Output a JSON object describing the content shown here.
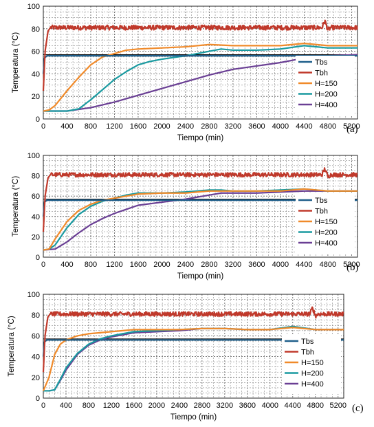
{
  "chart_data": [
    {
      "type": "line",
      "panel_label": "(a)",
      "xlabel": "Tiempo (min)",
      "ylabel": "Temperatura (°C)",
      "xlim": [
        0,
        5300
      ],
      "ylim": [
        0,
        100
      ],
      "xticks": [
        0,
        400,
        800,
        1200,
        1600,
        2000,
        2400,
        2800,
        3200,
        3600,
        4000,
        4400,
        4800,
        5200
      ],
      "yticks": [
        0,
        20,
        40,
        60,
        80,
        100
      ],
      "grid": true,
      "legend_position": "lower-right",
      "reference_line": 57,
      "series": [
        {
          "name": "Tbs",
          "color": "#1f5f8b",
          "x": [
            0,
            20,
            60,
            5300
          ],
          "y": [
            40,
            54,
            56,
            56
          ]
        },
        {
          "name": "Tbh",
          "color": "#c0392b",
          "noisy": true,
          "x": [
            0,
            30,
            80,
            120,
            4700,
            4750,
            4800,
            4850,
            5300
          ],
          "y": [
            25,
            60,
            78,
            81,
            81,
            87,
            79,
            81,
            81
          ]
        },
        {
          "name": "H=150",
          "color": "#f08a2a",
          "x": [
            0,
            100,
            200,
            400,
            600,
            800,
            1000,
            1200,
            1400,
            1600,
            2000,
            2400,
            2800,
            3200,
            3600,
            4000,
            4400,
            4800,
            5300
          ],
          "y": [
            7,
            8,
            12,
            25,
            37,
            48,
            55,
            58,
            61,
            62,
            63,
            64,
            66,
            65,
            65,
            65,
            67,
            65,
            65
          ]
        },
        {
          "name": "H=200",
          "color": "#1a9aa0",
          "x": [
            0,
            200,
            400,
            600,
            800,
            1000,
            1200,
            1400,
            1600,
            1800,
            2000,
            2400,
            2800,
            3000,
            3200,
            3600,
            4000,
            4400,
            4800,
            5300
          ],
          "y": [
            7,
            7,
            7,
            9,
            17,
            26,
            35,
            42,
            48,
            51,
            53,
            56,
            60,
            62,
            61,
            61,
            62,
            65,
            63,
            63
          ]
        },
        {
          "name": "H=400",
          "color": "#6a3f94",
          "x": [
            0,
            400,
            800,
            1200,
            1600,
            2000,
            2400,
            2800,
            3200,
            3600,
            4000,
            4400,
            4800,
            5300
          ],
          "y": [
            7,
            7,
            10,
            15,
            21,
            27,
            33,
            39,
            44,
            47,
            50,
            54,
            56,
            57
          ]
        }
      ]
    },
    {
      "type": "line",
      "panel_label": "(b)",
      "xlabel": "Tiempo (min)",
      "ylabel": "Temperatura (°C)",
      "xlim": [
        0,
        5300
      ],
      "ylim": [
        0,
        100
      ],
      "xticks": [
        0,
        400,
        800,
        1200,
        1600,
        2000,
        2400,
        2800,
        3200,
        3600,
        4000,
        4400,
        4800,
        5200
      ],
      "yticks": [
        0,
        20,
        40,
        60,
        80,
        100
      ],
      "grid": true,
      "legend_position": "lower-right",
      "reference_line": 57,
      "series": [
        {
          "name": "Tbs",
          "color": "#1f5f8b",
          "x": [
            0,
            20,
            60,
            5300
          ],
          "y": [
            40,
            54,
            56,
            56
          ]
        },
        {
          "name": "Tbh",
          "color": "#c0392b",
          "noisy": true,
          "x": [
            0,
            30,
            80,
            120,
            4700,
            4750,
            4800,
            4850,
            5300
          ],
          "y": [
            25,
            60,
            78,
            81,
            81,
            87,
            79,
            81,
            81
          ]
        },
        {
          "name": "H=150",
          "color": "#f08a2a",
          "x": [
            0,
            100,
            200,
            400,
            600,
            800,
            1000,
            1200,
            1400,
            1600,
            2000,
            2400,
            2800,
            3200,
            3600,
            4000,
            4400,
            4800,
            5300
          ],
          "y": [
            7,
            8,
            18,
            35,
            46,
            52,
            56,
            58,
            60,
            62,
            63,
            63,
            65,
            65,
            65,
            65,
            67,
            65,
            65
          ]
        },
        {
          "name": "H=200",
          "color": "#1a9aa0",
          "x": [
            0,
            100,
            200,
            400,
            600,
            800,
            1000,
            1200,
            1400,
            1600,
            2000,
            2400,
            2800,
            3000,
            3200,
            3600,
            4000,
            4400,
            4800,
            5300
          ],
          "y": [
            7,
            8,
            12,
            29,
            42,
            50,
            55,
            58,
            61,
            63,
            63,
            64,
            66,
            66,
            65,
            65,
            66,
            67,
            65,
            65
          ]
        },
        {
          "name": "H=400",
          "color": "#6a3f94",
          "x": [
            0,
            200,
            400,
            600,
            800,
            1000,
            1200,
            1400,
            1600,
            2000,
            2400,
            2800,
            3000,
            3200,
            3600,
            4000,
            4400,
            4800,
            5300
          ],
          "y": [
            7,
            8,
            15,
            24,
            32,
            38,
            43,
            47,
            51,
            54,
            57,
            61,
            63,
            63,
            63,
            64,
            65,
            65,
            65
          ]
        }
      ]
    },
    {
      "type": "line",
      "panel_label": "(c)",
      "xlabel": "Tiempo (min)",
      "ylabel": "Temperatura (°C)",
      "xlim": [
        0,
        5300
      ],
      "ylim": [
        0,
        100
      ],
      "xticks": [
        0,
        400,
        800,
        1200,
        1600,
        2000,
        2400,
        2800,
        3200,
        3600,
        4000,
        4400,
        4800,
        5200
      ],
      "yticks": [
        0,
        20,
        40,
        60,
        80,
        100
      ],
      "grid": true,
      "legend_position": "lower-right",
      "reference_line": 57,
      "series": [
        {
          "name": "Tbs",
          "color": "#1f5f8b",
          "x": [
            0,
            20,
            60,
            5300
          ],
          "y": [
            40,
            54,
            56,
            56
          ]
        },
        {
          "name": "Tbh",
          "color": "#c0392b",
          "noisy": true,
          "x": [
            0,
            30,
            80,
            120,
            4700,
            4750,
            4800,
            4850,
            5300
          ],
          "y": [
            25,
            60,
            78,
            81,
            81,
            87,
            79,
            81,
            81
          ]
        },
        {
          "name": "H=150",
          "color": "#f08a2a",
          "x": [
            0,
            100,
            200,
            300,
            400,
            600,
            800,
            1000,
            1200,
            1400,
            1600,
            2000,
            2400,
            2800,
            3200,
            3600,
            4000,
            4400,
            4800,
            5300
          ],
          "y": [
            7,
            20,
            42,
            52,
            56,
            60,
            62,
            63,
            64,
            65,
            66,
            66,
            66,
            67,
            67,
            66,
            66,
            68,
            66,
            66
          ]
        },
        {
          "name": "H=200",
          "color": "#1a9aa0",
          "x": [
            0,
            100,
            200,
            300,
            400,
            600,
            800,
            1000,
            1200,
            1400,
            1600,
            2000,
            2400,
            2800,
            3200,
            3600,
            4000,
            4400,
            4800,
            5300
          ],
          "y": [
            7,
            7,
            8,
            18,
            29,
            43,
            52,
            57,
            60,
            62,
            64,
            65,
            66,
            67,
            67,
            66,
            66,
            69,
            66,
            66
          ]
        },
        {
          "name": "H=400",
          "color": "#6a3f94",
          "x": [
            0,
            100,
            200,
            300,
            400,
            600,
            800,
            1000,
            1200,
            1400,
            1600,
            2000,
            2400,
            2800,
            3200,
            3600,
            4000,
            4400,
            4800,
            5300
          ],
          "y": [
            7,
            7,
            8,
            17,
            27,
            42,
            51,
            56,
            59,
            61,
            63,
            64,
            65,
            67,
            67,
            66,
            66,
            69,
            66,
            66
          ]
        }
      ]
    }
  ]
}
